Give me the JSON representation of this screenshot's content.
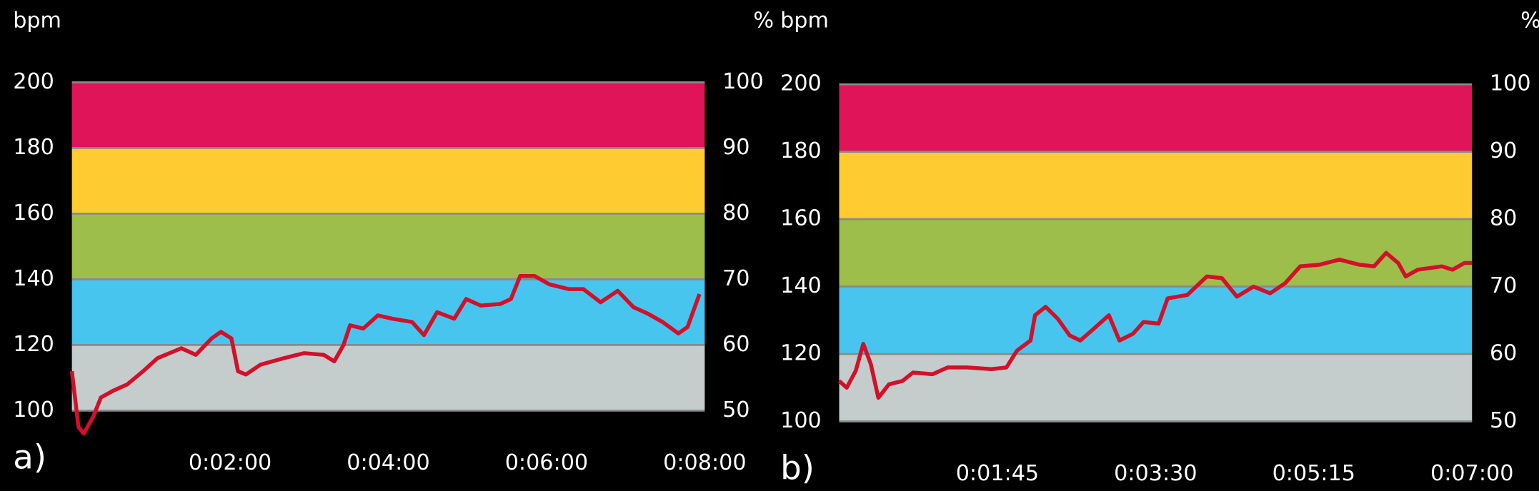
{
  "chart_data": [
    {
      "type": "line",
      "panel_label": "a)",
      "y_label": "bpm",
      "y2_label": "%",
      "x": [
        0,
        5,
        9,
        16,
        22,
        31,
        42,
        54,
        65,
        83,
        94,
        106,
        113,
        121,
        126,
        132,
        143,
        161,
        176,
        191,
        199,
        206,
        211,
        221,
        232,
        243,
        258,
        267,
        277,
        290,
        299,
        310,
        325,
        333,
        340,
        351,
        362,
        377,
        388,
        401,
        414,
        426,
        437,
        448,
        460,
        467,
        476
      ],
      "series": [
        {
          "name": "bpm",
          "color": "#d2102a",
          "values": [
            112,
            95,
            93,
            98,
            104,
            106,
            108,
            112,
            116,
            119,
            117,
            122,
            124,
            122,
            112,
            111,
            114,
            116,
            117.5,
            117,
            115,
            120,
            126,
            125,
            129,
            128,
            127,
            123,
            130,
            128,
            134,
            132,
            132.5,
            134,
            141,
            141,
            138.5,
            137,
            137,
            133,
            136.5,
            131.5,
            129.5,
            127,
            123.5,
            125.5,
            135.5
          ]
        }
      ],
      "xlim": [
        0,
        480
      ],
      "xticks": [
        {
          "value": 120,
          "label": "0:02:00"
        },
        {
          "value": 240,
          "label": "0:04:00"
        },
        {
          "value": 360,
          "label": "0:06:00"
        },
        {
          "value": 480,
          "label": "0:08:00"
        }
      ],
      "ylim": [
        100,
        200
      ],
      "yticks": [
        100,
        120,
        140,
        160,
        180,
        200
      ],
      "y2lim": [
        50,
        100
      ],
      "y2ticks": [
        50,
        60,
        70,
        80,
        90,
        100
      ],
      "zones": [
        {
          "from": 100,
          "to": 120,
          "color": "#c4cccc"
        },
        {
          "from": 120,
          "to": 140,
          "color": "#47c5ef"
        },
        {
          "from": 140,
          "to": 160,
          "color": "#9dbe4a"
        },
        {
          "from": 160,
          "to": 180,
          "color": "#fecb30"
        },
        {
          "from": 180,
          "to": 200,
          "color": "#df1459"
        }
      ],
      "grid": true
    },
    {
      "type": "line",
      "panel_label": "b)",
      "y_label": "bpm",
      "y2_label": "%",
      "x": [
        0,
        5,
        11,
        16,
        21,
        26,
        33,
        42,
        49,
        62,
        72,
        85,
        101,
        111,
        118,
        127,
        130,
        137,
        145,
        153,
        160,
        169,
        179,
        186,
        195,
        202,
        212,
        218,
        231,
        244,
        254,
        264,
        275,
        286,
        296,
        306,
        319,
        332,
        345,
        355,
        363,
        371,
        376,
        384,
        400,
        407,
        415,
        420
      ],
      "series": [
        {
          "name": "bpm",
          "color": "#d2102a",
          "values": [
            112,
            110,
            115,
            123,
            117,
            107,
            111,
            112,
            114.5,
            114,
            116,
            116,
            115.5,
            116,
            121,
            124,
            131.5,
            134,
            130.5,
            125.5,
            124,
            127.5,
            131.5,
            124,
            126,
            129.5,
            129,
            136.5,
            137.5,
            143,
            142.5,
            137,
            140,
            138,
            141,
            146,
            146.5,
            148,
            146.5,
            146,
            150,
            147,
            143,
            145,
            146,
            145,
            147,
            147
          ]
        }
      ],
      "xlim": [
        0,
        420
      ],
      "xticks": [
        {
          "value": 105,
          "label": "0:01:45"
        },
        {
          "value": 210,
          "label": "0:03:30"
        },
        {
          "value": 315,
          "label": "0:05:15"
        },
        {
          "value": 420,
          "label": "0:07:00"
        }
      ],
      "ylim": [
        100,
        200
      ],
      "yticks": [
        100,
        120,
        140,
        160,
        180,
        200
      ],
      "y2lim": [
        50,
        100
      ],
      "y2ticks": [
        50,
        60,
        70,
        80,
        90,
        100
      ],
      "zones": [
        {
          "from": 100,
          "to": 120,
          "color": "#c4cccc"
        },
        {
          "from": 120,
          "to": 140,
          "color": "#47c5ef"
        },
        {
          "from": 140,
          "to": 160,
          "color": "#9dbe4a"
        },
        {
          "from": 160,
          "to": 180,
          "color": "#fecb30"
        },
        {
          "from": 180,
          "to": 200,
          "color": "#df1459"
        }
      ],
      "grid": true
    }
  ]
}
